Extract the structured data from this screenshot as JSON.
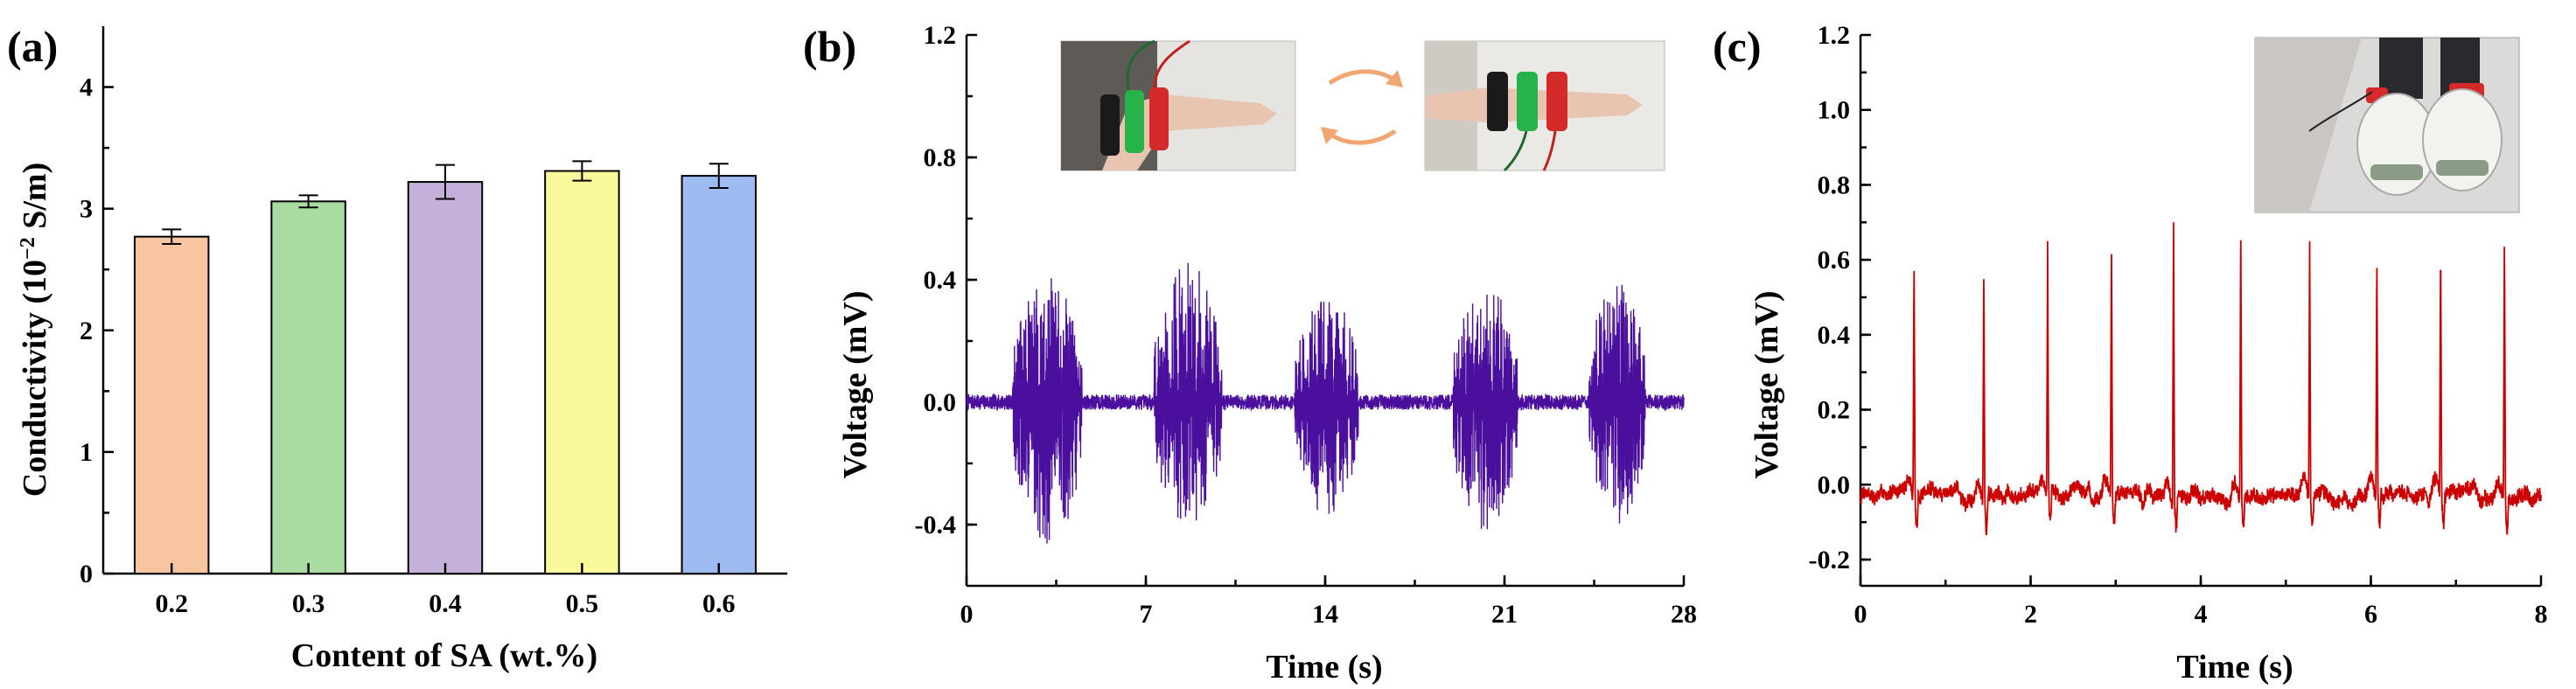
{
  "figure": {
    "panels": [
      {
        "label": "(a)",
        "chart_data": {
          "type": "bar",
          "title": "",
          "xlabel": "Content of SA (wt.%)",
          "ylabel_main": "Conductivity (10",
          "ylabel_sup": "−2",
          "ylabel_tail": " S/m)",
          "categories": [
            "0.2",
            "0.3",
            "0.4",
            "0.5",
            "0.6"
          ],
          "values": [
            2.77,
            3.06,
            3.22,
            3.31,
            3.27
          ],
          "errors": [
            0.06,
            0.05,
            0.14,
            0.08,
            0.1
          ],
          "colors": [
            "#f7c59f",
            "#a8dca0",
            "#c4b0d8",
            "#fafa9a",
            "#9fbcf2"
          ],
          "ylim": [
            0,
            4.5
          ],
          "yticks": [
            "0",
            "1",
            "2",
            "3",
            "4"
          ],
          "grid": false,
          "legend": "none"
        }
      },
      {
        "label": "(b)",
        "chart_data": {
          "type": "line",
          "title": "",
          "xlabel": "Time (s)",
          "ylabel": "Voltage (mV)",
          "xlim": [
            0,
            28
          ],
          "ylim": [
            -0.6,
            1.2
          ],
          "xticks": [
            "0",
            "7",
            "14",
            "21",
            "28"
          ],
          "yticks": [
            "-0.4",
            "0.0",
            "0.4",
            "0.8",
            "1.2"
          ],
          "series": [
            {
              "color": "#4b0f9e",
              "baseline": 0.0,
              "baseline_noise": 0.025,
              "bursts": [
                {
                  "start": 1.8,
                  "end": 4.5,
                  "max": 0.41,
                  "min": -0.48
                },
                {
                  "start": 7.3,
                  "end": 10.0,
                  "max": 0.46,
                  "min": -0.4
                },
                {
                  "start": 12.8,
                  "end": 15.3,
                  "max": 0.36,
                  "min": -0.37
                },
                {
                  "start": 19.0,
                  "end": 21.5,
                  "max": 0.39,
                  "min": -0.44
                },
                {
                  "start": 24.3,
                  "end": 26.5,
                  "max": 0.39,
                  "min": -0.4
                }
              ]
            }
          ],
          "grid": false,
          "legend": "none",
          "inset_photos": [
            "arm-bending-photo",
            "arm-straight-photo"
          ]
        }
      },
      {
        "label": "(c)",
        "chart_data": {
          "type": "line",
          "title": "",
          "xlabel": "Time (s)",
          "ylabel": "Voltage (mV)",
          "xlim": [
            0,
            8
          ],
          "ylim": [
            -0.27,
            1.2
          ],
          "xticks": [
            "0",
            "2",
            "4",
            "6",
            "8"
          ],
          "yticks": [
            "-0.2",
            "0.0",
            "0.2",
            "0.4",
            "0.6",
            "0.8",
            "1.0",
            "1.2"
          ],
          "series": [
            {
              "color": "#cc0000",
              "baseline": -0.03,
              "baseline_noise": 0.03,
              "peak_times": [
                0.63,
                1.45,
                2.2,
                2.95,
                3.68,
                4.47,
                5.28,
                6.07,
                6.82,
                7.57
              ],
              "peak_values": [
                0.61,
                0.59,
                0.65,
                0.66,
                0.7,
                0.7,
                0.65,
                0.62,
                0.66,
                0.68
              ]
            }
          ],
          "grid": false,
          "legend": "none",
          "inset_photos": [
            "shoes-photo"
          ]
        }
      }
    ]
  }
}
